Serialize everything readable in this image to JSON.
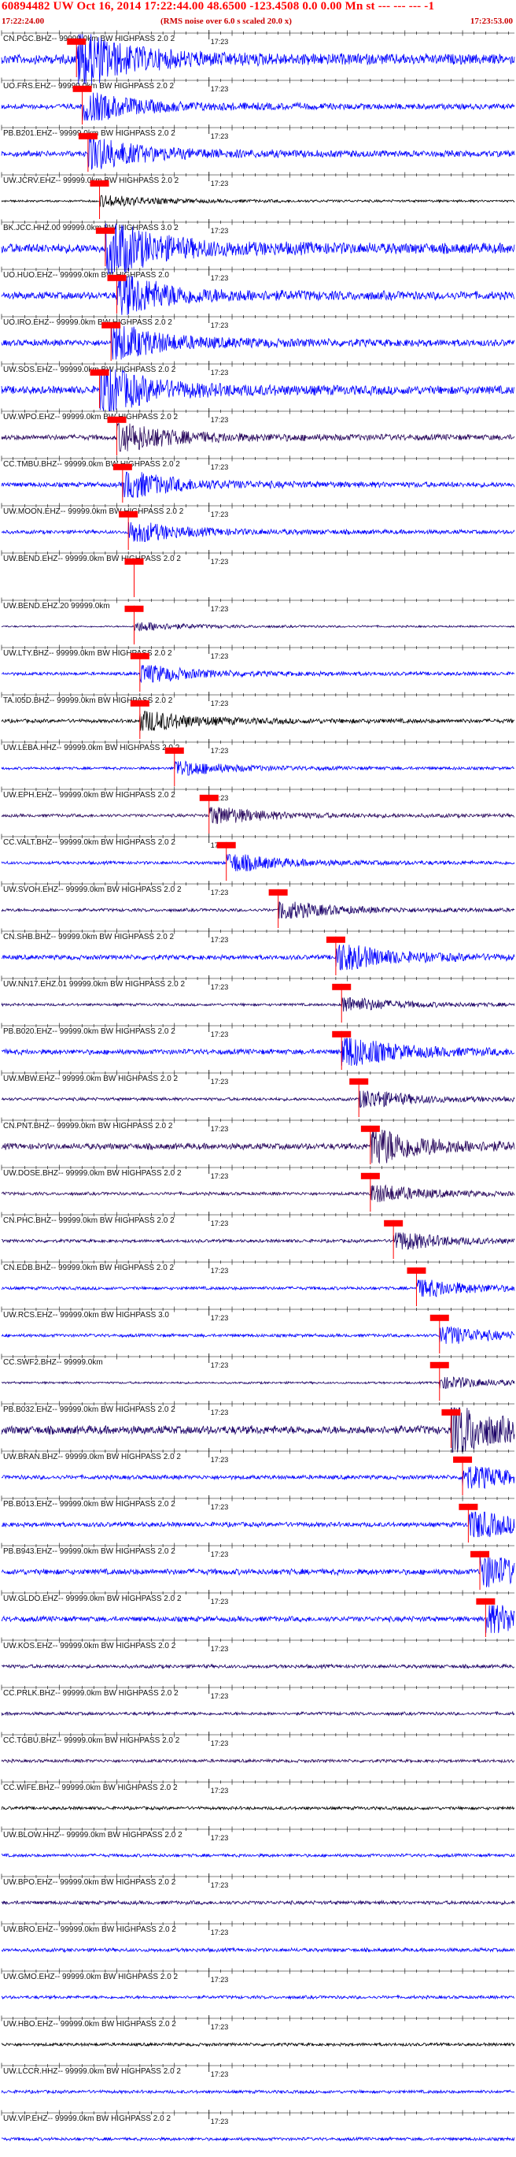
{
  "header": {
    "title": "60894482 UW Oct 16, 2014 17:22:44.00   48.6500  -123.4508   0.0  0.00  Mn  st --- --- ---  -1",
    "start_time": "17:22:24.00",
    "noise_note": "(RMS noise over 6.0 s scaled 20.0 x)",
    "end_time": "17:23:53.00"
  },
  "colors": {
    "header_text": "#ff0000",
    "pick_marker": "#ff0000",
    "trace_blue": "#0000ff",
    "trace_navy": "#1a0066",
    "trace_purple": "#2a0a5e",
    "trace_black": "#000000"
  },
  "chart_data": {
    "type": "line",
    "title": "60894482 UW Oct 16, 2014 17:22:44.00   48.6500  -123.4508   0.0  0.00  Mn  st --- --- ---  -1",
    "time_range": [
      "17:22:24.00",
      "17:23:53.00"
    ],
    "x_tick_label": "17:23",
    "channels": [
      {
        "label": "CN.PGC.BHZ-- 99999.0km BW  HIGHPASS  2.0  2",
        "tick": "17:23",
        "color": "#0000ff",
        "amp": 0.9,
        "arrival_s": 13
      },
      {
        "label": "UO.FRS.EHZ-- 99999.0km BW  HIGHPASS  2.0  2",
        "tick": "17:23",
        "color": "#0000ff",
        "amp": 0.5,
        "arrival_s": 14
      },
      {
        "label": "PB.B201.EHZ-- 99999.0km BW  HIGHPASS  2.0  2",
        "tick": "17:23",
        "color": "#0000ff",
        "amp": 0.55,
        "arrival_s": 15
      },
      {
        "label": "UW.JCRV.EHZ-- 99999.0km BW  HIGHPASS  2.0  2",
        "tick": "17:23",
        "color": "#000000",
        "amp": 0.2,
        "arrival_s": 17
      },
      {
        "label": "BK.JCC.HHZ.00 99999.0km BW  HIGHPASS  3.0  2",
        "tick": "17:23",
        "color": "#0000ff",
        "amp": 0.9,
        "arrival_s": 18
      },
      {
        "label": "UO.HUO.EHZ-- 99999.0km BW  HIGHPASS  2.0",
        "tick": "17:23",
        "color": "#0000ff",
        "amp": 0.7,
        "arrival_s": 20
      },
      {
        "label": "UO.IRO.EHZ-- 99999.0km BW  HIGHPASS  2.0  2",
        "tick": "17:23",
        "color": "#0000ff",
        "amp": 0.6,
        "arrival_s": 19
      },
      {
        "label": "UW.SOS.EHZ-- 99999.0km BW  HIGHPASS  2.0  2",
        "tick": "17:23",
        "color": "#0000ff",
        "amp": 0.75,
        "arrival_s": 17
      },
      {
        "label": "UW.WPO.EHZ-- 99999.0km BW  HIGHPASS  2.0  2",
        "tick": "17:23",
        "color": "#2a0a5e",
        "amp": 0.5,
        "arrival_s": 20
      },
      {
        "label": "CC.TMBU.BHZ-- 99999.0km BW  HIGHPASS  2.0  2",
        "tick": "17:23",
        "color": "#0000ff",
        "amp": 0.45,
        "arrival_s": 21
      },
      {
        "label": "UW.MOON.EHZ-- 99999.0km BW  HIGHPASS  2.0  2",
        "tick": "17:23",
        "color": "#0000ff",
        "amp": 0.35,
        "arrival_s": 22
      },
      {
        "label": "UW.BEND.EHZ-- 99999.0km BW  HIGHPASS  2.0  2",
        "tick": "17:23",
        "color": "#ffffff",
        "amp": 0.0,
        "arrival_s": 23
      },
      {
        "label": "UW.BEND.EHZ.20 99999.0km",
        "tick": "17:23",
        "color": "#1a0066",
        "amp": 0.15,
        "arrival_s": 23
      },
      {
        "label": "UW.LTY.BHZ-- 99999.0km BW  HIGHPASS  2.0  2",
        "tick": "17:23",
        "color": "#0000ff",
        "amp": 0.3,
        "arrival_s": 24
      },
      {
        "label": "TA.I05D.BHZ-- 99999.0km BW  HIGHPASS  2.0  2",
        "tick": "17:23",
        "color": "#000000",
        "amp": 0.35,
        "arrival_s": 24
      },
      {
        "label": "UW.LEBA.HHZ-- 99999.0km BW  HIGHPASS  2.0  2",
        "tick": "17:23",
        "color": "#0000ff",
        "amp": 0.25,
        "arrival_s": 30
      },
      {
        "label": "UW.EPH.EHZ-- 99999.0km BW  HIGHPASS  2.0  2",
        "tick": "17:23",
        "color": "#2a0a5e",
        "amp": 0.3,
        "arrival_s": 36
      },
      {
        "label": "CC.VALT.BHZ-- 99999.0km BW  HIGHPASS  2.0  2",
        "tick": "17:23",
        "color": "#0000ff",
        "amp": 0.3,
        "arrival_s": 39
      },
      {
        "label": "UW.SVOH.EHZ-- 99999.0km BW  HIGHPASS  2.0  2",
        "tick": "17:23",
        "color": "#1a0066",
        "amp": 0.3,
        "arrival_s": 48
      },
      {
        "label": "CN.SHB.BHZ-- 99999.0km BW  HIGHPASS  2.0  2",
        "tick": "17:23",
        "color": "#0000ff",
        "amp": 0.45,
        "arrival_s": 58
      },
      {
        "label": "UW.NN17.EHZ.01 99999.0km BW  HIGHPASS  2.0  2",
        "tick": "17:23",
        "color": "#1a0066",
        "amp": 0.25,
        "arrival_s": 59
      },
      {
        "label": "PB.B020.EHZ-- 99999.0km BW  HIGHPASS  2.0  2",
        "tick": "17:23",
        "color": "#0000ff",
        "amp": 0.5,
        "arrival_s": 59
      },
      {
        "label": "UW.MBW.EHZ-- 99999.0km BW  HIGHPASS  2.0  2",
        "tick": "17:23",
        "color": "#1a0066",
        "amp": 0.3,
        "arrival_s": 62
      },
      {
        "label": "CN.PNT.BHZ-- 99999.0km BW  HIGHPASS  2.0  2",
        "tick": "17:23",
        "color": "#2a0a5e",
        "amp": 0.6,
        "arrival_s": 64
      },
      {
        "label": "UW.DOSE.BHZ-- 99999.0km BW  HIGHPASS  2.0  2",
        "tick": "17:23",
        "color": "#2a0a5e",
        "amp": 0.3,
        "arrival_s": 64
      },
      {
        "label": "CN.PHC.BHZ-- 99999.0km BW  HIGHPASS  2.0  2",
        "tick": "17:23",
        "color": "#1a0066",
        "amp": 0.3,
        "arrival_s": 68
      },
      {
        "label": "CN.EDB.BHZ-- 99999.0km BW  HIGHPASS  2.0  2",
        "tick": "17:23",
        "color": "#0000ff",
        "amp": 0.3,
        "arrival_s": 72
      },
      {
        "label": "UW.RCS.EHZ-- 99999.0km BW  HIGHPASS  3.0",
        "tick": "17:23",
        "color": "#0000ff",
        "amp": 0.3,
        "arrival_s": 76
      },
      {
        "label": "CC.SWF2.BHZ-- 99999.0km",
        "tick": "17:23",
        "color": "#1a0066",
        "amp": 0.2,
        "arrival_s": 76
      },
      {
        "label": "PB.B032.EHZ-- 99999.0km BW  HIGHPASS  2.0  2",
        "tick": "17:23",
        "color": "#1a0066",
        "amp": 0.8,
        "arrival_s": 78
      },
      {
        "label": "UW.BRAN.BHZ-- 99999.0km BW  HIGHPASS  2.0  2",
        "tick": "17:23",
        "color": "#0000ff",
        "amp": 0.4,
        "arrival_s": 80
      },
      {
        "label": "PB.B013.EHZ-- 99999.0km BW  HIGHPASS  2.0  2",
        "tick": "17:23",
        "color": "#0000ff",
        "amp": 0.45,
        "arrival_s": 81
      },
      {
        "label": "PB.B943.EHZ-- 99999.0km BW  HIGHPASS  2.0  2",
        "tick": "17:23",
        "color": "#0000ff",
        "amp": 0.55,
        "arrival_s": 83
      },
      {
        "label": "UW.GLDO.EHZ-- 99999.0km BW  HIGHPASS  2.0  2",
        "tick": "17:23",
        "color": "#0000ff",
        "amp": 0.5,
        "arrival_s": 84
      },
      {
        "label": "UW.KOS.EHZ-- 99999.0km BW  HIGHPASS  2.0  2",
        "tick": "17:23",
        "color": "#1a0066",
        "amp": 0.35,
        "arrival_s": null
      },
      {
        "label": "CC.PRLK.BHZ-- 99999.0km BW  HIGHPASS  2.0  2",
        "tick": "17:23",
        "color": "#1a0066",
        "amp": 0.3,
        "arrival_s": null
      },
      {
        "label": "CC.TGBU.BHZ-- 99999.0km BW  HIGHPASS  2.0  2",
        "tick": "17:23",
        "color": "#2a0a5e",
        "amp": 0.3,
        "arrival_s": null
      },
      {
        "label": "CC.WIFE.BHZ-- 99999.0km BW  HIGHPASS  2.0  2",
        "tick": "17:23",
        "color": "#000000",
        "amp": 0.3,
        "arrival_s": null
      },
      {
        "label": "UW.BLOW.HHZ-- 99999.0km BW  HIGHPASS  2.0  2",
        "tick": "17:23",
        "color": "#0000ff",
        "amp": 0.3,
        "arrival_s": null
      },
      {
        "label": "UW.BPO.EHZ-- 99999.0km BW  HIGHPASS  2.0  2",
        "tick": "17:23",
        "color": "#1a0066",
        "amp": 0.35,
        "arrival_s": null
      },
      {
        "label": "UW.BRO.EHZ-- 99999.0km BW  HIGHPASS  2.0  2",
        "tick": "17:23",
        "color": "#0000ff",
        "amp": 0.35,
        "arrival_s": null
      },
      {
        "label": "UW.GMO.EHZ-- 99999.0km BW  HIGHPASS  2.0  2",
        "tick": "17:23",
        "color": "#0000ff",
        "amp": 0.3,
        "arrival_s": null
      },
      {
        "label": "UW.HBO.EHZ-- 99999.0km BW  HIGHPASS  2.0  2",
        "tick": "17:23",
        "color": "#000000",
        "amp": 0.3,
        "arrival_s": null
      },
      {
        "label": "UW.LCCR.HHZ-- 99999.0km BW  HIGHPASS  2.0  2",
        "tick": "17:23",
        "color": "#0000ff",
        "amp": 0.3,
        "arrival_s": null
      },
      {
        "label": "UW.VIP.EHZ-- 99999.0km BW  HIGHPASS  2.0  2",
        "tick": "17:23",
        "color": "#0000ff",
        "amp": 0.3,
        "arrival_s": null
      }
    ]
  }
}
